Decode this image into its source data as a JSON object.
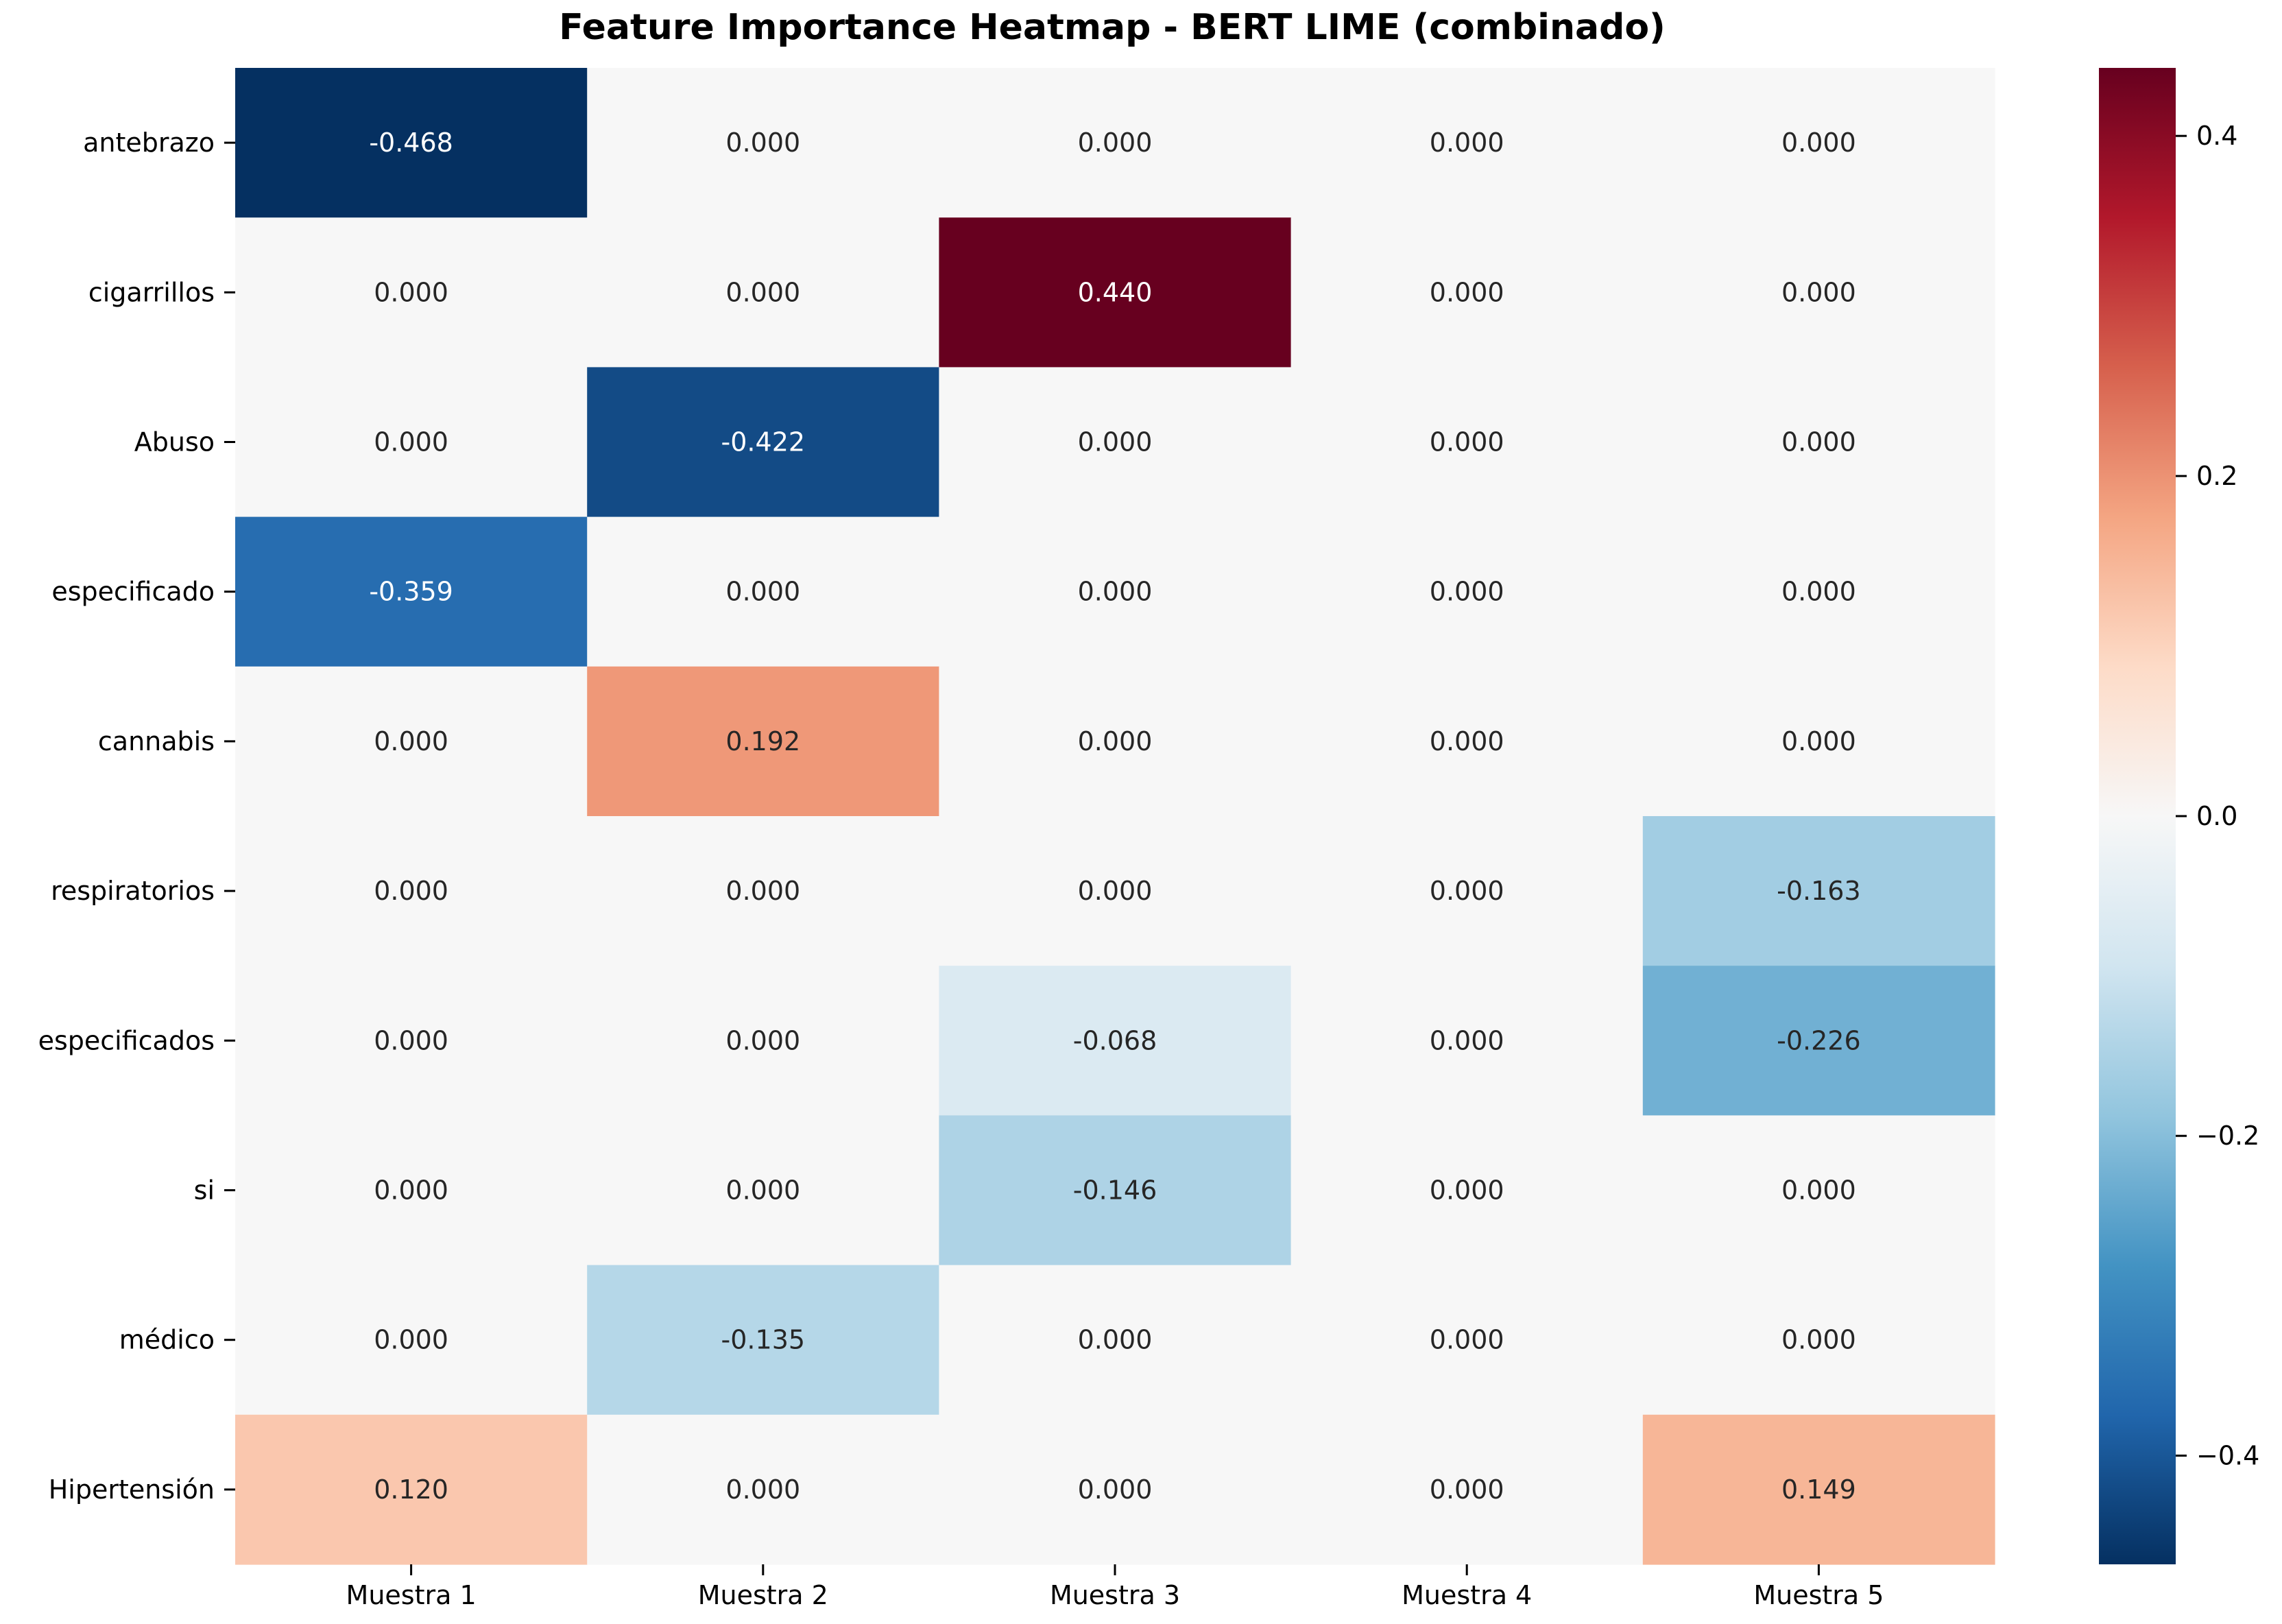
{
  "chart_data": {
    "type": "heatmap",
    "title": "Feature Importance Heatmap - BERT LIME (combinado)",
    "xlabel": "",
    "ylabel": "",
    "columns": [
      "Muestra 1",
      "Muestra 2",
      "Muestra 3",
      "Muestra 4",
      "Muestra 5"
    ],
    "rows": [
      "antebrazo",
      "cigarrillos",
      "Abuso",
      "especificado",
      "cannabis",
      "respiratorios",
      "especificados",
      "si",
      "médico",
      "Hipertensión"
    ],
    "values": [
      [
        -0.468,
        0.0,
        0.0,
        0.0,
        0.0
      ],
      [
        0.0,
        0.0,
        0.44,
        0.0,
        0.0
      ],
      [
        0.0,
        -0.422,
        0.0,
        0.0,
        0.0
      ],
      [
        -0.359,
        0.0,
        0.0,
        0.0,
        0.0
      ],
      [
        0.0,
        0.192,
        0.0,
        0.0,
        0.0
      ],
      [
        0.0,
        0.0,
        0.0,
        0.0,
        -0.163
      ],
      [
        0.0,
        0.0,
        -0.068,
        0.0,
        -0.226
      ],
      [
        0.0,
        0.0,
        -0.146,
        0.0,
        0.0
      ],
      [
        0.0,
        -0.135,
        0.0,
        0.0,
        0.0
      ],
      [
        0.12,
        0.0,
        0.0,
        0.0,
        0.149
      ]
    ],
    "labels": [
      [
        "-0.468",
        "0.000",
        "0.000",
        "0.000",
        "0.000"
      ],
      [
        "0.000",
        "0.000",
        "0.440",
        "0.000",
        "0.000"
      ],
      [
        "0.000",
        "-0.422",
        "0.000",
        "0.000",
        "0.000"
      ],
      [
        "-0.359",
        "0.000",
        "0.000",
        "0.000",
        "0.000"
      ],
      [
        "0.000",
        "0.192",
        "0.000",
        "0.000",
        "0.000"
      ],
      [
        "0.000",
        "0.000",
        "0.000",
        "0.000",
        "-0.163"
      ],
      [
        "0.000",
        "0.000",
        "-0.068",
        "0.000",
        "-0.226"
      ],
      [
        "0.000",
        "0.000",
        "-0.146",
        "0.000",
        "0.000"
      ],
      [
        "0.000",
        "-0.135",
        "0.000",
        "0.000",
        "0.000"
      ],
      [
        "0.120",
        "0.000",
        "0.000",
        "0.000",
        "0.149"
      ]
    ],
    "colormap": "RdBu_r",
    "vmin": -0.468,
    "vmax": 0.44,
    "colorbar": {
      "ticks": [
        0.4,
        0.2,
        0.0,
        -0.2,
        -0.4
      ],
      "tick_labels": [
        "0.4",
        "0.2",
        "0.0",
        "−0.2",
        "−0.4"
      ]
    },
    "colors": {
      "rdbu_stops": [
        "#053061",
        "#2166ac",
        "#4393c3",
        "#92c5de",
        "#d1e5f0",
        "#f7f7f7",
        "#fddbc7",
        "#f4a582",
        "#d6604d",
        "#b2182b",
        "#67001f"
      ],
      "dark_text": "#262626",
      "light_text": "#ffffff"
    }
  }
}
